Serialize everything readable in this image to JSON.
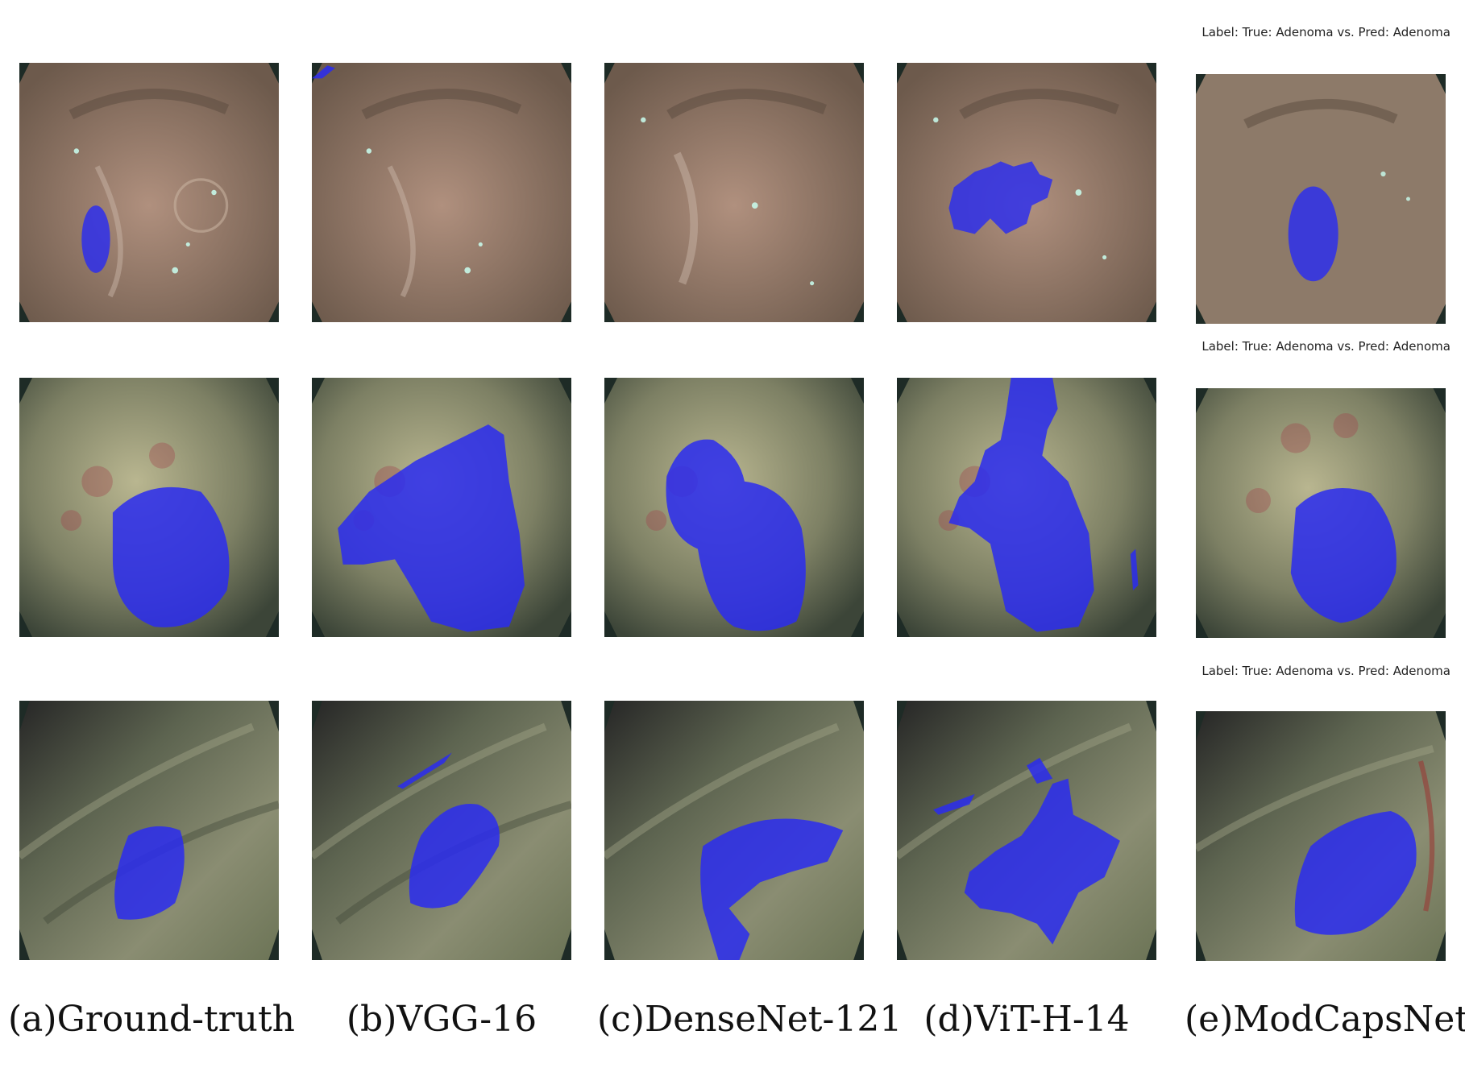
{
  "labels": [
    "Label: True: Adenoma vs. Pred: Adenoma",
    "Label: True: Adenoma vs. Pred: Adenoma",
    "Label: True: Adenoma vs. Pred: Adenoma"
  ],
  "captions": [
    "(a)Ground-truth",
    "(b)VGG-16",
    "(c)DenseNet-121",
    "(d)ViT-H-14",
    "(e)ModCapsNet"
  ],
  "colors": {
    "mask": "#2a2cf0",
    "tissue_row1": "#9a8372",
    "tissue_row2": "#7d8064",
    "tissue_row3": "#6c7456",
    "frame": "#1e2b26"
  }
}
